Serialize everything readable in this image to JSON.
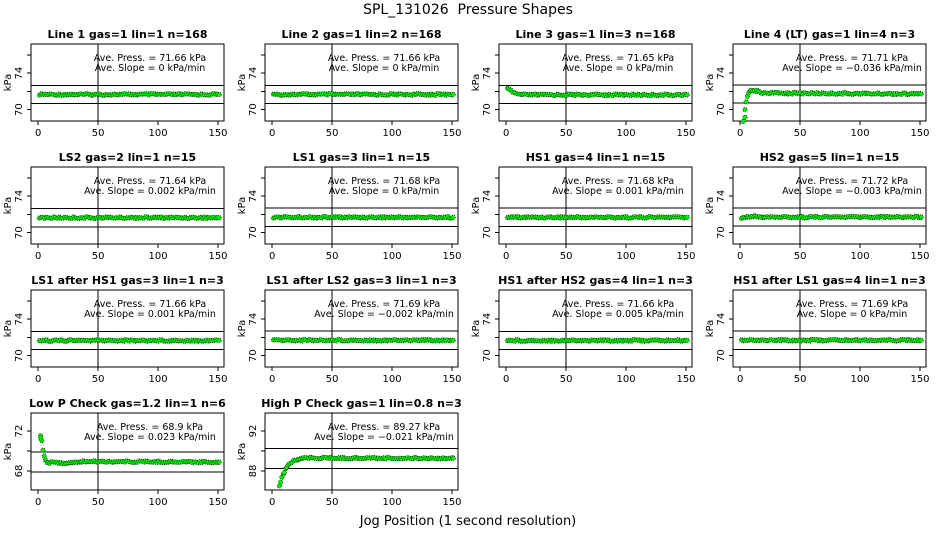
{
  "figure": {
    "title": "SPL_131026  Pressure Shapes",
    "xlabel": "Jog Position (1 second resolution)",
    "background": "#ffffff",
    "axis_color": "#000000",
    "point_fill_color": "#00f400",
    "point_stroke_color": "#000000"
  },
  "chart_data": {
    "type": "scatter",
    "marker": "circle",
    "grid": "off",
    "layout": {
      "rows": 4,
      "cols": 4,
      "n_subplots": 14
    },
    "x_axis_title": "Jog Position (1 second resolution)",
    "xlim": [
      -6,
      155
    ],
    "x_ticks": [
      0,
      50,
      100,
      150
    ],
    "subplots": [
      {
        "title": "Line 1 gas=1 lin=1 n=168",
        "gas": "1",
        "lin": "1",
        "n": 168,
        "ave_press_kpa": 71.66,
        "ave_slope_kpa_per_min": 0,
        "annotation": [
          "Ave. Press. =  71.66  kPa",
          "Ave. Slope =  0  kPa/min"
        ],
        "ylabel": "kPa",
        "ylim": [
          68.75,
          77.2
        ],
        "y_ticks": [
          {
            "v": 70,
            "label": "70"
          },
          {
            "v": 72,
            "label": ""
          },
          {
            "v": 74,
            "label": "74"
          },
          {
            "v": 76,
            "label": ""
          }
        ],
        "ref_hlines_kpa": [
          70.66,
          72.66
        ],
        "ref_vline_x": 50,
        "series_anchors": [
          [
            1,
            71.66
          ],
          [
            151,
            71.66
          ]
        ],
        "extra_points": []
      },
      {
        "title": "Line 2 gas=1 lin=2 n=168",
        "gas": "1",
        "lin": "2",
        "n": 168,
        "ave_press_kpa": 71.66,
        "ave_slope_kpa_per_min": 0,
        "annotation": [
          "Ave. Press. =  71.66  kPa",
          "Ave. Slope =  0  kPa/min"
        ],
        "ylabel": "kPa",
        "ylim": [
          68.75,
          77.2
        ],
        "y_ticks": [
          {
            "v": 70,
            "label": "70"
          },
          {
            "v": 72,
            "label": ""
          },
          {
            "v": 74,
            "label": "74"
          },
          {
            "v": 76,
            "label": ""
          }
        ],
        "ref_hlines_kpa": [
          70.66,
          72.66
        ],
        "ref_vline_x": 50,
        "series_anchors": [
          [
            1,
            71.66
          ],
          [
            151,
            71.66
          ]
        ],
        "extra_points": []
      },
      {
        "title": "Line 3 gas=1 lin=3 n=168",
        "gas": "1",
        "lin": "3",
        "n": 168,
        "ave_press_kpa": 71.65,
        "ave_slope_kpa_per_min": 0,
        "annotation": [
          "Ave. Press. =  71.65  kPa",
          "Ave. Slope =  0  kPa/min"
        ],
        "ylabel": "kPa",
        "ylim": [
          68.75,
          77.2
        ],
        "y_ticks": [
          {
            "v": 70,
            "label": "70"
          },
          {
            "v": 72,
            "label": ""
          },
          {
            "v": 74,
            "label": "74"
          },
          {
            "v": 76,
            "label": ""
          }
        ],
        "ref_hlines_kpa": [
          70.65,
          72.65
        ],
        "ref_vline_x": 50,
        "series_anchors": [
          [
            1,
            72.25
          ],
          [
            4,
            72.05
          ],
          [
            7,
            71.8
          ],
          [
            10,
            71.68
          ],
          [
            14,
            71.63
          ],
          [
            151,
            71.62
          ]
        ],
        "extra_points": []
      },
      {
        "title": "Line 4 (LT) gas=1 lin=4 n=3",
        "gas": "1",
        "lin": "4",
        "n": 3,
        "ave_press_kpa": 71.71,
        "ave_slope_kpa_per_min": -0.036,
        "annotation": [
          "Ave. Press. =  71.71  kPa",
          "Ave. Slope =  −0.036  kPa/min"
        ],
        "ylabel": "kPa",
        "ylim": [
          68.75,
          77.2
        ],
        "y_ticks": [
          {
            "v": 70,
            "label": "70"
          },
          {
            "v": 72,
            "label": ""
          },
          {
            "v": 74,
            "label": "74"
          },
          {
            "v": 76,
            "label": ""
          }
        ],
        "ref_hlines_kpa": [
          70.71,
          72.71
        ],
        "ref_vline_x": 50,
        "series_anchors": [
          [
            5,
            70.9
          ],
          [
            6,
            71.5
          ],
          [
            7,
            71.9
          ],
          [
            9,
            72.05
          ],
          [
            14,
            72.05
          ],
          [
            17,
            71.85
          ],
          [
            40,
            71.8
          ],
          [
            151,
            71.72
          ]
        ],
        "extra_points": [
          [
            2.5,
            68.7
          ],
          [
            4,
            69.15
          ],
          [
            4,
            70.0
          ]
        ]
      },
      {
        "title": "LS2 gas=2 lin=1 n=15",
        "gas": "2",
        "lin": "1",
        "n": 15,
        "ave_press_kpa": 71.64,
        "ave_slope_kpa_per_min": 0.002,
        "annotation": [
          "Ave. Press. =  71.64  kPa",
          "Ave. Slope =  0.002  kPa/min"
        ],
        "ylabel": "kPa",
        "ylim": [
          68.75,
          77.2
        ],
        "y_ticks": [
          {
            "v": 70,
            "label": "70"
          },
          {
            "v": 72,
            "label": ""
          },
          {
            "v": 74,
            "label": "74"
          },
          {
            "v": 76,
            "label": ""
          }
        ],
        "ref_hlines_kpa": [
          70.64,
          72.64
        ],
        "ref_vline_x": 50,
        "series_anchors": [
          [
            1,
            71.64
          ],
          [
            151,
            71.64
          ]
        ],
        "extra_points": []
      },
      {
        "title": "LS1 gas=3 lin=1 n=15",
        "gas": "3",
        "lin": "1",
        "n": 15,
        "ave_press_kpa": 71.68,
        "ave_slope_kpa_per_min": 0,
        "annotation": [
          "Ave. Press. =  71.68  kPa",
          "Ave. Slope =  0  kPa/min"
        ],
        "ylabel": "kPa",
        "ylim": [
          68.75,
          77.2
        ],
        "y_ticks": [
          {
            "v": 70,
            "label": "70"
          },
          {
            "v": 72,
            "label": ""
          },
          {
            "v": 74,
            "label": "74"
          },
          {
            "v": 76,
            "label": ""
          }
        ],
        "ref_hlines_kpa": [
          70.68,
          72.68
        ],
        "ref_vline_x": 50,
        "series_anchors": [
          [
            1,
            71.68
          ],
          [
            151,
            71.68
          ]
        ],
        "extra_points": []
      },
      {
        "title": "HS1 gas=4 lin=1 n=15",
        "gas": "4",
        "lin": "1",
        "n": 15,
        "ave_press_kpa": 71.68,
        "ave_slope_kpa_per_min": 0.001,
        "annotation": [
          "Ave. Press. =  71.68  kPa",
          "Ave. Slope =  0.001  kPa/min"
        ],
        "ylabel": "kPa",
        "ylim": [
          68.75,
          77.2
        ],
        "y_ticks": [
          {
            "v": 70,
            "label": "70"
          },
          {
            "v": 72,
            "label": ""
          },
          {
            "v": 74,
            "label": "74"
          },
          {
            "v": 76,
            "label": ""
          }
        ],
        "ref_hlines_kpa": [
          70.68,
          72.68
        ],
        "ref_vline_x": 50,
        "series_anchors": [
          [
            1,
            71.68
          ],
          [
            151,
            71.68
          ]
        ],
        "extra_points": []
      },
      {
        "title": "HS2 gas=5 lin=1 n=15",
        "gas": "5",
        "lin": "1",
        "n": 15,
        "ave_press_kpa": 71.72,
        "ave_slope_kpa_per_min": -0.003,
        "annotation": [
          "Ave. Press. =  71.72  kPa",
          "Ave. Slope =  −0.003  kPa/min"
        ],
        "ylabel": "kPa",
        "ylim": [
          68.75,
          77.2
        ],
        "y_ticks": [
          {
            "v": 70,
            "label": "70"
          },
          {
            "v": 72,
            "label": ""
          },
          {
            "v": 74,
            "label": "74"
          },
          {
            "v": 76,
            "label": ""
          }
        ],
        "ref_hlines_kpa": [
          70.72,
          72.72
        ],
        "ref_vline_x": 50,
        "series_anchors": [
          [
            1,
            71.62
          ],
          [
            6,
            71.72
          ],
          [
            12,
            71.78
          ],
          [
            20,
            71.7
          ],
          [
            151,
            71.72
          ]
        ],
        "extra_points": []
      },
      {
        "title": "LS1 after HS1 gas=3 lin=1 n=3",
        "gas": "3",
        "lin": "1",
        "n": 3,
        "ave_press_kpa": 71.66,
        "ave_slope_kpa_per_min": 0.001,
        "annotation": [
          "Ave. Press. =  71.66  kPa",
          "Ave. Slope =  0.001  kPa/min"
        ],
        "ylabel": "kPa",
        "ylim": [
          68.75,
          77.2
        ],
        "y_ticks": [
          {
            "v": 70,
            "label": "70"
          },
          {
            "v": 72,
            "label": ""
          },
          {
            "v": 74,
            "label": "74"
          },
          {
            "v": 76,
            "label": ""
          }
        ],
        "ref_hlines_kpa": [
          70.66,
          72.66
        ],
        "ref_vline_x": 50,
        "series_anchors": [
          [
            1,
            71.66
          ],
          [
            151,
            71.66
          ]
        ],
        "extra_points": []
      },
      {
        "title": "LS1 after LS2 gas=3 lin=1 n=3",
        "gas": "3",
        "lin": "1",
        "n": 3,
        "ave_press_kpa": 71.69,
        "ave_slope_kpa_per_min": -0.002,
        "annotation": [
          "Ave. Press. =  71.69  kPa",
          "Ave. Slope =  −0.002  kPa/min"
        ],
        "ylabel": "kPa",
        "ylim": [
          68.75,
          77.2
        ],
        "y_ticks": [
          {
            "v": 70,
            "label": "70"
          },
          {
            "v": 72,
            "label": ""
          },
          {
            "v": 74,
            "label": "74"
          },
          {
            "v": 76,
            "label": ""
          }
        ],
        "ref_hlines_kpa": [
          70.69,
          72.69
        ],
        "ref_vline_x": 50,
        "series_anchors": [
          [
            1,
            71.69
          ],
          [
            151,
            71.69
          ]
        ],
        "extra_points": []
      },
      {
        "title": "HS1 after HS2 gas=4 lin=1 n=3",
        "gas": "4",
        "lin": "1",
        "n": 3,
        "ave_press_kpa": 71.66,
        "ave_slope_kpa_per_min": 0.005,
        "annotation": [
          "Ave. Press. =  71.66  kPa",
          "Ave. Slope =  0.005  kPa/min"
        ],
        "ylabel": "kPa",
        "ylim": [
          68.75,
          77.2
        ],
        "y_ticks": [
          {
            "v": 70,
            "label": "70"
          },
          {
            "v": 72,
            "label": ""
          },
          {
            "v": 74,
            "label": "74"
          },
          {
            "v": 76,
            "label": ""
          }
        ],
        "ref_hlines_kpa": [
          70.66,
          72.66
        ],
        "ref_vline_x": 50,
        "series_anchors": [
          [
            1,
            71.66
          ],
          [
            151,
            71.66
          ]
        ],
        "extra_points": []
      },
      {
        "title": "HS1 after LS1 gas=4 lin=1 n=3",
        "gas": "4",
        "lin": "1",
        "n": 3,
        "ave_press_kpa": 71.69,
        "ave_slope_kpa_per_min": 0,
        "annotation": [
          "Ave. Press. =  71.69  kPa",
          "Ave. Slope =  0  kPa/min"
        ],
        "ylabel": "kPa",
        "ylim": [
          68.75,
          77.2
        ],
        "y_ticks": [
          {
            "v": 70,
            "label": "70"
          },
          {
            "v": 72,
            "label": ""
          },
          {
            "v": 74,
            "label": "74"
          },
          {
            "v": 76,
            "label": ""
          }
        ],
        "ref_hlines_kpa": [
          70.69,
          72.69
        ],
        "ref_vline_x": 50,
        "series_anchors": [
          [
            1,
            71.69
          ],
          [
            151,
            71.69
          ]
        ],
        "extra_points": []
      },
      {
        "title": "Low P Check gas=1.2 lin=1 n=6",
        "gas": "1.2",
        "lin": "1",
        "n": 6,
        "ave_press_kpa": 68.9,
        "ave_slope_kpa_per_min": 0.023,
        "annotation": [
          "Ave. Press. =  68.9  kPa",
          "Ave. Slope =  0.023  kPa/min"
        ],
        "ylabel": "kPa",
        "ylim": [
          66.1,
          73.8
        ],
        "y_ticks": [
          {
            "v": 68,
            "label": "68"
          },
          {
            "v": 70,
            "label": ""
          },
          {
            "v": 72,
            "label": "72"
          }
        ],
        "ref_hlines_kpa": [
          67.9,
          69.9
        ],
        "ref_vline_x": 50,
        "series_anchors": [
          [
            2,
            71.55
          ],
          [
            3,
            71.0
          ],
          [
            4,
            70.15
          ],
          [
            5,
            69.5
          ],
          [
            6,
            69.1
          ],
          [
            8,
            68.85
          ],
          [
            28,
            68.78
          ],
          [
            36,
            68.95
          ],
          [
            151,
            68.9
          ]
        ],
        "extra_points": [
          [
            2,
            71.3
          ]
        ]
      },
      {
        "title": "High P Check gas=1 lin=0.8 n=3",
        "gas": "1",
        "lin": "0.8",
        "n": 3,
        "ave_press_kpa": 89.27,
        "ave_slope_kpa_per_min": -0.021,
        "annotation": [
          "Ave. Press. =  89.27  kPa",
          "Ave. Slope =  −0.021  kPa/min"
        ],
        "ylabel": "kPa",
        "ylim": [
          86.1,
          93.8
        ],
        "y_ticks": [
          {
            "v": 88,
            "label": "88"
          },
          {
            "v": 90,
            "label": ""
          },
          {
            "v": 92,
            "label": "92"
          }
        ],
        "ref_hlines_kpa": [
          88.27,
          90.27
        ],
        "ref_vline_x": 50,
        "series_anchors": [
          [
            6,
            86.5
          ],
          [
            7,
            86.9
          ],
          [
            8,
            87.3
          ],
          [
            10,
            87.9
          ],
          [
            12,
            88.35
          ],
          [
            15,
            88.8
          ],
          [
            18,
            89.05
          ],
          [
            22,
            89.2
          ],
          [
            26,
            89.3
          ],
          [
            151,
            89.28
          ]
        ],
        "extra_points": []
      }
    ]
  }
}
